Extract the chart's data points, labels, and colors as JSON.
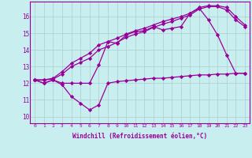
{
  "xlabel": "Windchill (Refroidissement éolien,°C)",
  "background_color": "#c8eef0",
  "line_color": "#990099",
  "grid_color": "#aacccc",
  "x_ticks": [
    0,
    1,
    2,
    3,
    4,
    5,
    6,
    7,
    8,
    9,
    10,
    11,
    12,
    13,
    14,
    15,
    16,
    17,
    18,
    19,
    20,
    21,
    22,
    23
  ],
  "y_ticks": [
    10,
    11,
    12,
    13,
    14,
    15,
    16
  ],
  "ylim": [
    9.6,
    16.9
  ],
  "xlim": [
    -0.5,
    23.5
  ],
  "series": [
    {
      "x": [
        0,
        1,
        2,
        3,
        4,
        5,
        6,
        7,
        8,
        9,
        10,
        11,
        12,
        13,
        14,
        15,
        16,
        17,
        18,
        19,
        20,
        21,
        22,
        23
      ],
      "y": [
        12.2,
        12.0,
        12.2,
        11.9,
        11.2,
        10.8,
        10.4,
        10.7,
        12.0,
        12.1,
        12.15,
        12.2,
        12.25,
        12.3,
        12.3,
        12.35,
        12.4,
        12.45,
        12.5,
        12.5,
        12.55,
        12.55,
        12.6,
        12.6
      ]
    },
    {
      "x": [
        0,
        1,
        2,
        3,
        4,
        5,
        6,
        7,
        8,
        9,
        10,
        11,
        12,
        13,
        14,
        15,
        16,
        17,
        18,
        19,
        20,
        21,
        22,
        23
      ],
      "y": [
        12.2,
        12.0,
        12.2,
        12.0,
        12.0,
        12.0,
        12.0,
        13.1,
        14.5,
        14.4,
        14.9,
        15.1,
        15.15,
        15.4,
        15.2,
        15.3,
        15.4,
        16.2,
        16.5,
        15.8,
        14.9,
        13.7,
        12.6,
        12.6
      ]
    },
    {
      "x": [
        0,
        1,
        2,
        3,
        4,
        5,
        6,
        7,
        8,
        9,
        10,
        11,
        12,
        13,
        14,
        15,
        16,
        17,
        18,
        19,
        20,
        21,
        22,
        23
      ],
      "y": [
        12.2,
        12.2,
        12.3,
        12.7,
        13.2,
        13.5,
        13.8,
        14.3,
        14.5,
        14.7,
        14.95,
        15.15,
        15.3,
        15.5,
        15.7,
        15.85,
        16.0,
        16.2,
        16.55,
        16.65,
        16.65,
        16.55,
        16.0,
        15.5
      ]
    },
    {
      "x": [
        0,
        1,
        2,
        3,
        4,
        5,
        6,
        7,
        8,
        9,
        10,
        11,
        12,
        13,
        14,
        15,
        16,
        17,
        18,
        19,
        20,
        21,
        22,
        23
      ],
      "y": [
        12.2,
        12.2,
        12.25,
        12.55,
        13.0,
        13.25,
        13.5,
        14.0,
        14.2,
        14.45,
        14.75,
        14.95,
        15.1,
        15.35,
        15.55,
        15.7,
        15.9,
        16.1,
        16.45,
        16.6,
        16.6,
        16.4,
        15.8,
        15.4
      ]
    }
  ]
}
